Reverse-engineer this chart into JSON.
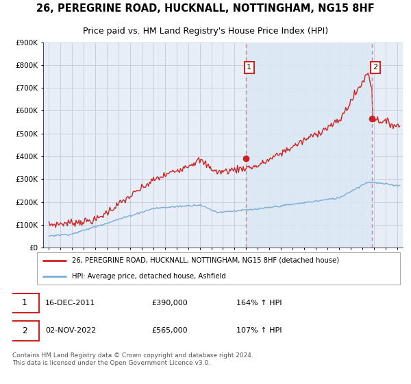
{
  "title": "26, PEREGRINE ROAD, HUCKNALL, NOTTINGHAM, NG15 8HF",
  "subtitle": "Price paid vs. HM Land Registry's House Price Index (HPI)",
  "legend_line1": "26, PEREGRINE ROAD, HUCKNALL, NOTTINGHAM, NG15 8HF (detached house)",
  "legend_line2": "HPI: Average price, detached house, Ashfield",
  "annotation1_label": "1",
  "annotation1_date": "16-DEC-2011",
  "annotation1_price": "£390,000",
  "annotation1_hpi": "164% ↑ HPI",
  "annotation2_label": "2",
  "annotation2_date": "02-NOV-2022",
  "annotation2_price": "£565,000",
  "annotation2_hpi": "107% ↑ HPI",
  "footer": "Contains HM Land Registry data © Crown copyright and database right 2024.\nThis data is licensed under the Open Government Licence v3.0.",
  "vline1_x": 2011.96,
  "vline2_x": 2022.84,
  "marker1_x": 2011.96,
  "marker1_y": 390000,
  "marker2_x": 2022.84,
  "marker2_y": 565000,
  "ylim": [
    0,
    900000
  ],
  "xlim": [
    1994.5,
    2025.5
  ],
  "hpi_color": "#7aadd4",
  "house_color": "#cc2222",
  "vline_color": "#e08080",
  "shade_color": "#dce8f5",
  "background_color": "#e8eef8",
  "plot_bg_color": "#e8eef8",
  "grid_color": "#c8d0dc",
  "fig_bg_color": "#ffffff"
}
